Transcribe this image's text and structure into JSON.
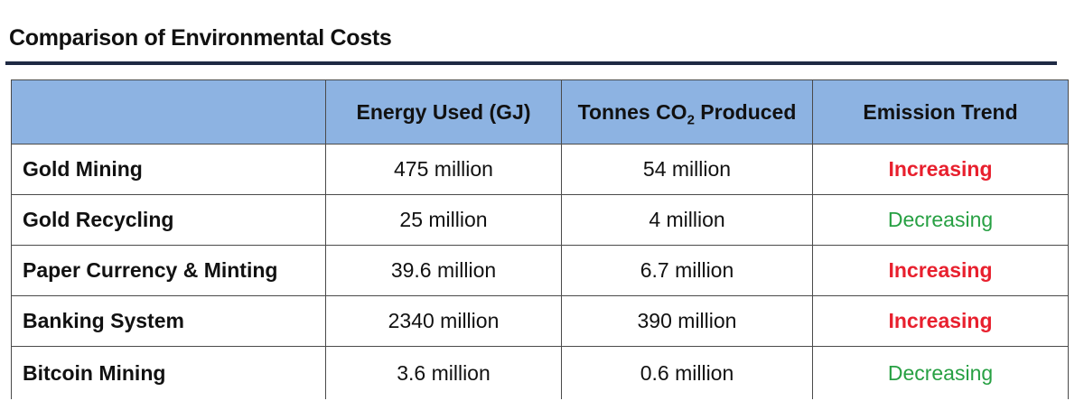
{
  "title": "Comparison of Environmental Costs",
  "table": {
    "headers": {
      "blank": "",
      "energy": "Energy Used (GJ)",
      "co2_prefix": "Tonnes CO",
      "co2_sub": "2",
      "co2_suffix": " Produced",
      "trend": "Emission Trend"
    },
    "rows": [
      {
        "label": "Gold Mining",
        "energy": "475 million",
        "co2": "54 million",
        "trend": "Increasing",
        "trend_dir": "up"
      },
      {
        "label": "Gold Recycling",
        "energy": "25 million",
        "co2": "4 million",
        "trend": "Decreasing",
        "trend_dir": "down"
      },
      {
        "label": "Paper Currency & Minting",
        "energy": "39.6 million",
        "co2": "6.7 million",
        "trend": "Increasing",
        "trend_dir": "up"
      },
      {
        "label": "Banking System",
        "energy": "2340 million",
        "co2": "390 million",
        "trend": "Increasing",
        "trend_dir": "up"
      },
      {
        "label": "Bitcoin Mining",
        "energy": "3.6 million",
        "co2": "0.6 million",
        "trend": "Decreasing",
        "trend_dir": "down"
      }
    ]
  },
  "colors": {
    "header_bg": "#8db3e2",
    "increasing": "#e8202e",
    "decreasing": "#27a043",
    "rule": "#1f2a44"
  }
}
